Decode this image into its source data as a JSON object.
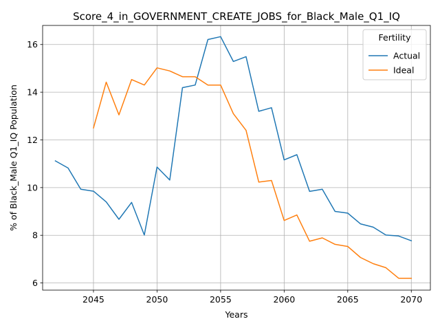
{
  "chart_data": {
    "type": "line",
    "title": "Score_4_in_GOVERNMENT_CREATE_JOBS_for_Black_Male_Q1_IQ",
    "xlabel": "Years",
    "ylabel": "% of Black_Male Q1_IQ Population",
    "xlim": [
      2041,
      2071.5
    ],
    "ylim": [
      5.7,
      16.8
    ],
    "xticks": [
      2045,
      2050,
      2055,
      2060,
      2065,
      2070
    ],
    "yticks": [
      6,
      8,
      10,
      12,
      14,
      16
    ],
    "grid": true,
    "legend": {
      "title": "Fertility",
      "placement": "top-right"
    },
    "series": [
      {
        "name": "Actual",
        "color": "#1f77b4",
        "x": [
          2042,
          2043,
          2044,
          2045,
          2046,
          2047,
          2048,
          2049,
          2050,
          2051,
          2052,
          2053,
          2054,
          2055,
          2056,
          2057,
          2058,
          2059,
          2060,
          2061,
          2062,
          2063,
          2064,
          2065,
          2066,
          2067,
          2068,
          2069,
          2070
        ],
        "values": [
          11.12,
          10.82,
          9.93,
          9.85,
          9.4,
          8.67,
          9.38,
          8.01,
          10.86,
          10.32,
          14.19,
          14.3,
          16.21,
          16.33,
          15.29,
          15.49,
          13.2,
          13.35,
          11.16,
          11.38,
          9.84,
          9.93,
          9.0,
          8.93,
          8.48,
          8.34,
          8.01,
          7.97,
          7.77
        ]
      },
      {
        "name": "Ideal",
        "color": "#ff7f0e",
        "x": [
          2045,
          2046,
          2047,
          2048,
          2049,
          2050,
          2051,
          2052,
          2053,
          2054,
          2055,
          2056,
          2057,
          2058,
          2059,
          2060,
          2061,
          2062,
          2063,
          2064,
          2065,
          2066,
          2067,
          2068,
          2069,
          2070
        ],
        "values": [
          12.5,
          14.42,
          13.05,
          14.53,
          14.3,
          15.02,
          14.89,
          14.65,
          14.65,
          14.3,
          14.3,
          13.1,
          12.4,
          10.23,
          10.3,
          8.62,
          8.85,
          7.75,
          7.89,
          7.62,
          7.53,
          7.07,
          6.81,
          6.64,
          6.2,
          6.2
        ]
      }
    ]
  }
}
